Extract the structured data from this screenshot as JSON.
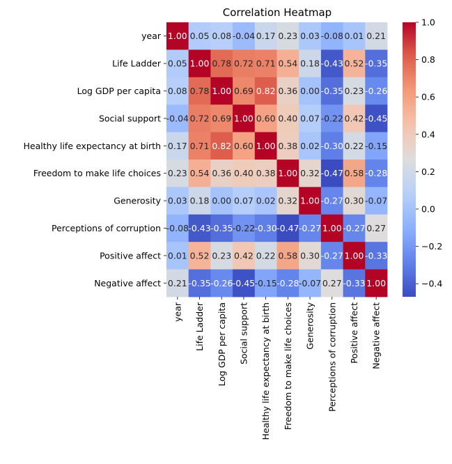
{
  "chart_data": {
    "type": "heatmap",
    "title": "Correlation Heatmap",
    "xlabel": "",
    "ylabel": "",
    "colormap": "coolwarm",
    "annotate": true,
    "value_format": "2 decimals",
    "labels": [
      "year",
      "Life Ladder",
      "Log GDP per capita",
      "Social support",
      "Healthy life expectancy at birth",
      "Freedom to make life choices",
      "Generosity",
      "Perceptions of corruption",
      "Positive affect",
      "Negative affect"
    ],
    "matrix": [
      [
        1.0,
        0.05,
        0.08,
        -0.04,
        0.17,
        0.23,
        0.03,
        -0.08,
        0.01,
        0.21
      ],
      [
        0.05,
        1.0,
        0.78,
        0.72,
        0.71,
        0.54,
        0.18,
        -0.43,
        0.52,
        -0.35
      ],
      [
        0.08,
        0.78,
        1.0,
        0.69,
        0.82,
        0.36,
        -0.0,
        -0.35,
        0.23,
        -0.26
      ],
      [
        -0.04,
        0.72,
        0.69,
        1.0,
        0.6,
        0.4,
        0.07,
        -0.22,
        0.42,
        -0.45
      ],
      [
        0.17,
        0.71,
        0.82,
        0.6,
        1.0,
        0.38,
        0.02,
        -0.3,
        0.22,
        -0.15
      ],
      [
        0.23,
        0.54,
        0.36,
        0.4,
        0.38,
        1.0,
        0.32,
        -0.47,
        0.58,
        -0.28
      ],
      [
        0.03,
        0.18,
        -0.0,
        0.07,
        0.02,
        0.32,
        1.0,
        -0.27,
        0.3,
        -0.07
      ],
      [
        -0.08,
        -0.43,
        -0.35,
        -0.22,
        -0.3,
        -0.47,
        -0.27,
        1.0,
        -0.27,
        0.27
      ],
      [
        0.01,
        0.52,
        0.23,
        0.42,
        0.22,
        0.58,
        0.3,
        -0.27,
        1.0,
        -0.33
      ],
      [
        0.21,
        -0.35,
        -0.26,
        -0.45,
        -0.15,
        -0.28,
        -0.07,
        0.27,
        -0.33,
        1.0
      ]
    ],
    "vmin": -0.47,
    "vmax": 1.0,
    "colorbar_ticks": [
      1.0,
      0.8,
      0.6,
      0.4,
      0.2,
      0.0,
      -0.2,
      -0.4
    ],
    "colorbar_tick_labels": [
      "1.0",
      "0.8",
      "0.6",
      "0.4",
      "0.2",
      "0.0",
      "−0.2",
      "−0.4"
    ],
    "grid": false,
    "legend": "colorbar-right"
  }
}
